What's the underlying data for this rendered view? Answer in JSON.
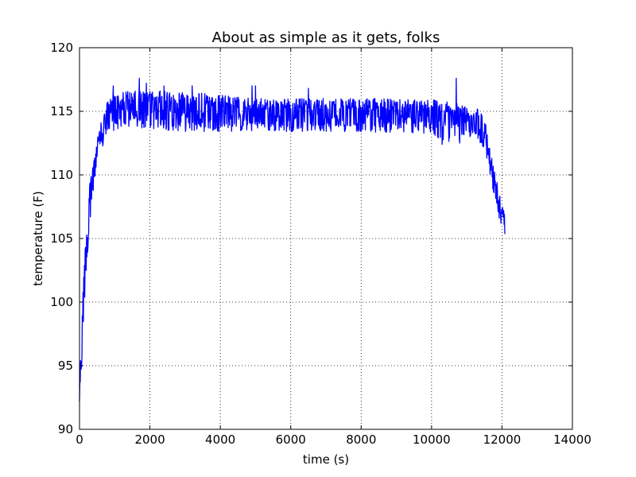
{
  "chart_data": {
    "type": "line",
    "title": "About as simple as it gets, folks",
    "xlabel": "time (s)",
    "ylabel": "temperature (F)",
    "xlim": [
      0,
      14000
    ],
    "ylim": [
      90,
      120
    ],
    "xticks": [
      0,
      2000,
      4000,
      6000,
      8000,
      10000,
      12000,
      14000
    ],
    "yticks": [
      90,
      95,
      100,
      105,
      110,
      115,
      120
    ],
    "grid": true,
    "grid_style": "dotted",
    "legend": "none",
    "series": [
      {
        "color": "#0000ff",
        "envelope": [
          {
            "x": 0,
            "low": 91.8,
            "high": 94.0
          },
          {
            "x": 50,
            "low": 94.0,
            "high": 98.0
          },
          {
            "x": 100,
            "low": 97.0,
            "high": 101.5
          },
          {
            "x": 150,
            "low": 100.0,
            "high": 104.0
          },
          {
            "x": 200,
            "low": 102.5,
            "high": 106.5
          },
          {
            "x": 250,
            "low": 104.5,
            "high": 108.0
          },
          {
            "x": 300,
            "low": 106.5,
            "high": 109.5
          },
          {
            "x": 400,
            "low": 108.5,
            "high": 111.5
          },
          {
            "x": 500,
            "low": 110.5,
            "high": 113.0
          },
          {
            "x": 600,
            "low": 111.5,
            "high": 114.0
          },
          {
            "x": 700,
            "low": 112.5,
            "high": 115.0
          },
          {
            "x": 800,
            "low": 113.0,
            "high": 115.8
          },
          {
            "x": 900,
            "low": 113.3,
            "high": 116.3
          },
          {
            "x": 1000,
            "low": 113.5,
            "high": 116.6
          },
          {
            "x": 1200,
            "low": 113.7,
            "high": 116.6
          },
          {
            "x": 1500,
            "low": 113.6,
            "high": 116.6
          },
          {
            "x": 2000,
            "low": 113.6,
            "high": 116.6
          },
          {
            "x": 2500,
            "low": 113.5,
            "high": 116.6
          },
          {
            "x": 3000,
            "low": 113.4,
            "high": 116.6
          },
          {
            "x": 4000,
            "low": 113.4,
            "high": 116.3
          },
          {
            "x": 5000,
            "low": 113.4,
            "high": 116.0
          },
          {
            "x": 6000,
            "low": 113.4,
            "high": 116.0
          },
          {
            "x": 7000,
            "low": 113.4,
            "high": 116.0
          },
          {
            "x": 8000,
            "low": 113.4,
            "high": 116.0
          },
          {
            "x": 9000,
            "low": 113.3,
            "high": 116.0
          },
          {
            "x": 9500,
            "low": 113.3,
            "high": 116.0
          },
          {
            "x": 10000,
            "low": 113.0,
            "high": 116.0
          },
          {
            "x": 10500,
            "low": 112.6,
            "high": 115.8
          },
          {
            "x": 10700,
            "low": 112.8,
            "high": 115.6
          },
          {
            "x": 11000,
            "low": 113.0,
            "high": 115.4
          },
          {
            "x": 11300,
            "low": 112.8,
            "high": 115.2
          },
          {
            "x": 11500,
            "low": 112.0,
            "high": 114.5
          },
          {
            "x": 11600,
            "low": 110.8,
            "high": 113.2
          },
          {
            "x": 11700,
            "low": 109.5,
            "high": 111.5
          },
          {
            "x": 11800,
            "low": 108.0,
            "high": 110.2
          },
          {
            "x": 11900,
            "low": 106.8,
            "high": 109.0
          },
          {
            "x": 12000,
            "low": 105.3,
            "high": 107.8
          },
          {
            "x": 12080,
            "low": 104.1,
            "high": 107.4
          }
        ],
        "spikes": [
          {
            "x": 960,
            "y": 117.0
          },
          {
            "x": 1700,
            "y": 117.6
          },
          {
            "x": 1900,
            "y": 117.2
          },
          {
            "x": 2400,
            "y": 117.0
          },
          {
            "x": 3200,
            "y": 117.0
          },
          {
            "x": 4900,
            "y": 117.0
          },
          {
            "x": 5000,
            "y": 117.0
          },
          {
            "x": 6500,
            "y": 116.8
          },
          {
            "x": 10300,
            "y": 116.8
          },
          {
            "x": 10700,
            "y": 117.6
          },
          {
            "x": 10300,
            "y": 112.4
          },
          {
            "x": 10800,
            "y": 112.5
          }
        ]
      }
    ]
  }
}
